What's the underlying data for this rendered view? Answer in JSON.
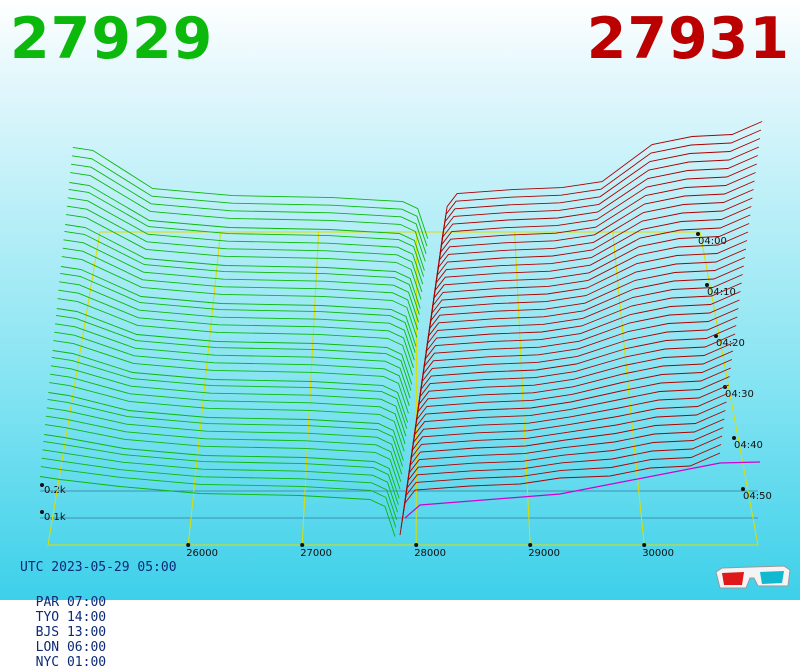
{
  "header": {
    "bid_price": "27929",
    "ask_price": "27931",
    "bid_color": "#0bb80b",
    "ask_color": "#bb0000"
  },
  "footer": {
    "utc": "UTC 2023-05-29 05:00",
    "timezones": [
      {
        "label": "PAR 07:00"
      },
      {
        "label": "TYO 14:00"
      },
      {
        "label": "BJS 13:00"
      },
      {
        "label": "LON 06:00"
      },
      {
        "label": "NYC 01:00"
      }
    ],
    "glasses_icon": "3d-glasses-icon"
  },
  "chart_data": {
    "type": "area",
    "style": "3d order-book depth waterfall",
    "x_axis": {
      "ticks": [
        26000,
        27000,
        28000,
        29000,
        30000
      ],
      "range": [
        24700,
        30800
      ]
    },
    "y_axis": {
      "ticks": [
        "0.1k",
        "0.2k"
      ],
      "values": [
        100,
        200
      ]
    },
    "time_axis": {
      "ticks": [
        "04:00",
        "04:10",
        "04:20",
        "04:30",
        "04:40",
        "04:50"
      ]
    },
    "series": [
      {
        "side": "bid",
        "color": "#0bb80b",
        "x": [
          24700,
          25200,
          25800,
          26500,
          27200,
          27600,
          27929
        ],
        "depth": [
          180,
          175,
          170,
          165,
          160,
          155,
          0
        ]
      },
      {
        "side": "ask",
        "color": "#aa0000",
        "x": [
          27931,
          28100,
          28600,
          29200,
          29800,
          30300,
          30800
        ],
        "depth": [
          0,
          175,
          180,
          190,
          200,
          215,
          235
        ]
      }
    ],
    "legend": "none",
    "grid": true
  }
}
